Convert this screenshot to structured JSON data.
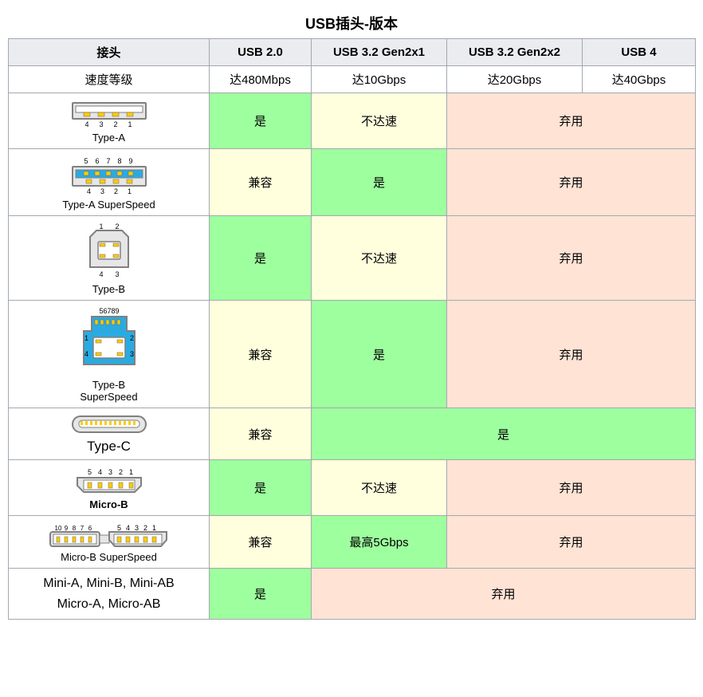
{
  "title": "USB插头-版本",
  "colors": {
    "border": "#a2a9b1",
    "header_bg": "#eaecf0",
    "yes": "#9eff9e",
    "compat": "#ffffdd",
    "deprecated": "#ffe3d5",
    "white": "#ffffff",
    "svg_outline": "#808080",
    "svg_fill_grey": "#e6e6e6",
    "svg_fill_blue": "#29abe2",
    "svg_fill_white": "#ffffff",
    "svg_pin": "#ffcc00",
    "svg_text": "#000000"
  },
  "headers": {
    "connector": "接头",
    "cols": [
      "USB 2.0",
      "USB 3.2 Gen2x1",
      "USB 3.2 Gen2x2",
      "USB 4"
    ]
  },
  "speed_row": {
    "label": "速度等级",
    "values": [
      "达480Mbps",
      "达10Gbps",
      "达20Gbps",
      "达40Gbps"
    ]
  },
  "labels": {
    "yes": "是",
    "compat": "兼容",
    "nospeed": "不达速",
    "deprecated": "弃用",
    "max5": "最高5Gbps"
  },
  "connectors": [
    {
      "name": "Type-A",
      "svg": "type-a",
      "cells": [
        {
          "text_key": "yes",
          "bg_key": "yes"
        },
        {
          "text_key": "nospeed",
          "bg_key": "compat"
        },
        {
          "text_key": "deprecated",
          "bg_key": "deprecated",
          "colspan": 2
        }
      ]
    },
    {
      "name": "Type-A SuperSpeed",
      "svg": "type-a-ss",
      "cells": [
        {
          "text_key": "compat",
          "bg_key": "compat"
        },
        {
          "text_key": "yes",
          "bg_key": "yes"
        },
        {
          "text_key": "deprecated",
          "bg_key": "deprecated",
          "colspan": 2
        }
      ]
    },
    {
      "name": "Type-B",
      "svg": "type-b",
      "cells": [
        {
          "text_key": "yes",
          "bg_key": "yes"
        },
        {
          "text_key": "nospeed",
          "bg_key": "compat"
        },
        {
          "text_key": "deprecated",
          "bg_key": "deprecated",
          "colspan": 2
        }
      ]
    },
    {
      "name": "Type-B\nSuperSpeed",
      "svg": "type-b-ss",
      "cells": [
        {
          "text_key": "compat",
          "bg_key": "compat"
        },
        {
          "text_key": "yes",
          "bg_key": "yes"
        },
        {
          "text_key": "deprecated",
          "bg_key": "deprecated",
          "colspan": 2
        }
      ]
    },
    {
      "name": "Type-C",
      "svg": "type-c",
      "font_size": 17,
      "cells": [
        {
          "text_key": "compat",
          "bg_key": "compat"
        },
        {
          "text_key": "yes",
          "bg_key": "yes",
          "colspan": 3
        }
      ]
    },
    {
      "name": "Micro-B",
      "svg": "micro-b",
      "font_weight": "bold",
      "cells": [
        {
          "text_key": "yes",
          "bg_key": "yes"
        },
        {
          "text_key": "nospeed",
          "bg_key": "compat"
        },
        {
          "text_key": "deprecated",
          "bg_key": "deprecated",
          "colspan": 2
        }
      ]
    },
    {
      "name": "Micro-B SuperSpeed",
      "svg": "micro-b-ss",
      "cells": [
        {
          "text_key": "compat",
          "bg_key": "compat"
        },
        {
          "text_key": "max5",
          "bg_key": "yes"
        },
        {
          "text_key": "deprecated",
          "bg_key": "deprecated",
          "colspan": 2
        }
      ]
    },
    {
      "name": "Mini-A, Mini-B, Mini-AB\nMicro-A, Micro-AB",
      "svg": null,
      "cells": [
        {
          "text_key": "yes",
          "bg_key": "yes"
        },
        {
          "text_key": "deprecated",
          "bg_key": "deprecated",
          "colspan": 3
        }
      ]
    }
  ]
}
